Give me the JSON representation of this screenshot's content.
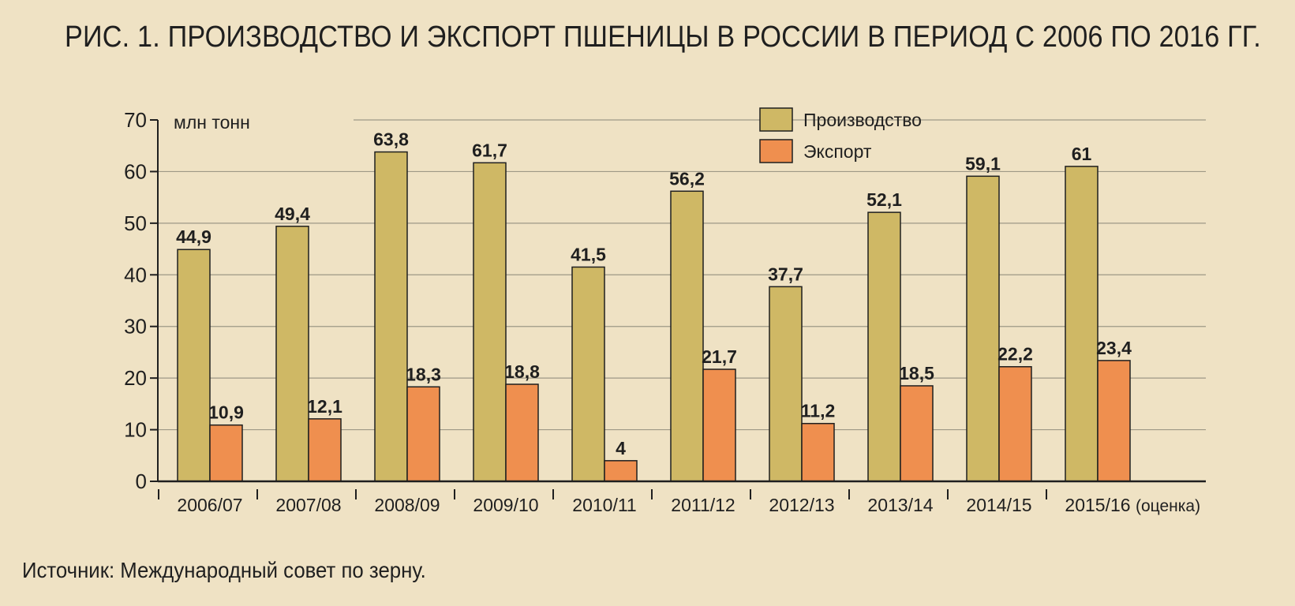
{
  "figure": {
    "title": "РИС. 1. ПРОИЗВОДСТВО И ЭКСПОРТ ПШЕНИЦЫ В РОССИИ В ПЕРИОД С 2006 ПО 2016 ГГ.",
    "source": "Источник: Международный совет по зерну."
  },
  "colors": {
    "background": "#efe2c4",
    "production": "#cfb865",
    "export": "#ef8f4f",
    "grid": "#9e9886",
    "axis": "#1f1f1f",
    "text": "#1f1f1f"
  },
  "chart_data": {
    "type": "bar",
    "title": "РИС. 1. ПРОИЗВОДСТВО И ЭКСПОРТ ПШЕНИЦЫ В РОССИИ В ПЕРИОД С 2006 ПО 2016 ГГ.",
    "xlabel": "",
    "ylabel": "млн тонн",
    "ylim": [
      0,
      70
    ],
    "yticks": [
      0,
      10,
      20,
      30,
      40,
      50,
      60,
      70
    ],
    "grid": true,
    "legend_position": "top-right",
    "categories": [
      "2006/07",
      "2007/08",
      "2008/09",
      "2009/10",
      "2010/11",
      "2011/12",
      "2012/13",
      "2013/14",
      "2014/15",
      "2015/16"
    ],
    "category_notes": [
      "",
      "",
      "",
      "",
      "",
      "",
      "",
      "",
      "",
      "(оценка)"
    ],
    "series": [
      {
        "name": "Производство",
        "values": [
          44.9,
          49.4,
          63.8,
          61.7,
          41.5,
          56.2,
          37.7,
          52.1,
          59.1,
          61
        ],
        "labels": [
          "44,9",
          "49,4",
          "63,8",
          "61,7",
          "41,5",
          "56,2",
          "37,7",
          "52,1",
          "59,1",
          "61"
        ]
      },
      {
        "name": "Экспорт",
        "values": [
          10.9,
          12.1,
          18.3,
          18.8,
          4,
          21.7,
          11.2,
          18.5,
          22.2,
          23.4
        ],
        "labels": [
          "10,9",
          "12,1",
          "18,3",
          "18,8",
          "4",
          "21,7",
          "11,2",
          "18,5",
          "22,2",
          "23,4"
        ]
      }
    ]
  }
}
